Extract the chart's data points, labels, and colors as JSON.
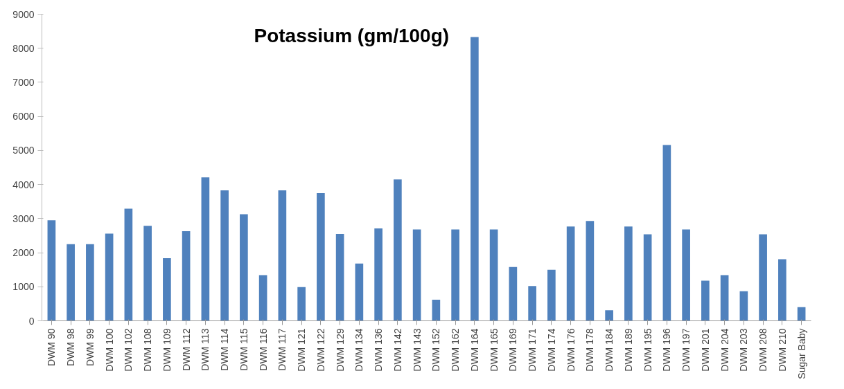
{
  "chart_data": {
    "type": "bar",
    "title": "Potassium (gm/100g)",
    "categories": [
      "DWM 90",
      "DWM 98",
      "DWM 99",
      "DWM 100",
      "DWM 102",
      "DWM 108",
      "DWM 109",
      "DWM 112",
      "DWM 113",
      "DWM 114",
      "DWM 115",
      "DWM 116",
      "DWM 117",
      "DWM 121",
      "DWM 122",
      "DWM 129",
      "DWM 134",
      "DWM 136",
      "DWM 142",
      "DWM 143",
      "DWM 152",
      "DWM 162",
      "DWM 164",
      "DWM 165",
      "DWM 169",
      "DWM 171",
      "DWM 174",
      "DWM 176",
      "DWM 178",
      "DWM 184",
      "DWM 189",
      "DWM 195",
      "DWM 196",
      "DWM 197",
      "DWM 201",
      "DWM 204",
      "DWM 203",
      "DWM 208",
      "DWM 210",
      "Sugar Baby"
    ],
    "values": [
      2950,
      2250,
      2250,
      2560,
      3290,
      2790,
      1840,
      2630,
      4210,
      3830,
      3130,
      1340,
      3830,
      990,
      3750,
      2550,
      1680,
      2710,
      4150,
      2680,
      620,
      2680,
      8330,
      2680,
      1580,
      1020,
      1500,
      2770,
      2930,
      310,
      2770,
      2540,
      5160,
      2680,
      1180,
      1340,
      870,
      2540,
      1810,
      400
    ],
    "color": "#4f81bd",
    "ylim": [
      0,
      9000
    ],
    "yticks": [
      0,
      1000,
      2000,
      3000,
      4000,
      5000,
      6000,
      7000,
      8000,
      9000
    ],
    "grid": false
  }
}
